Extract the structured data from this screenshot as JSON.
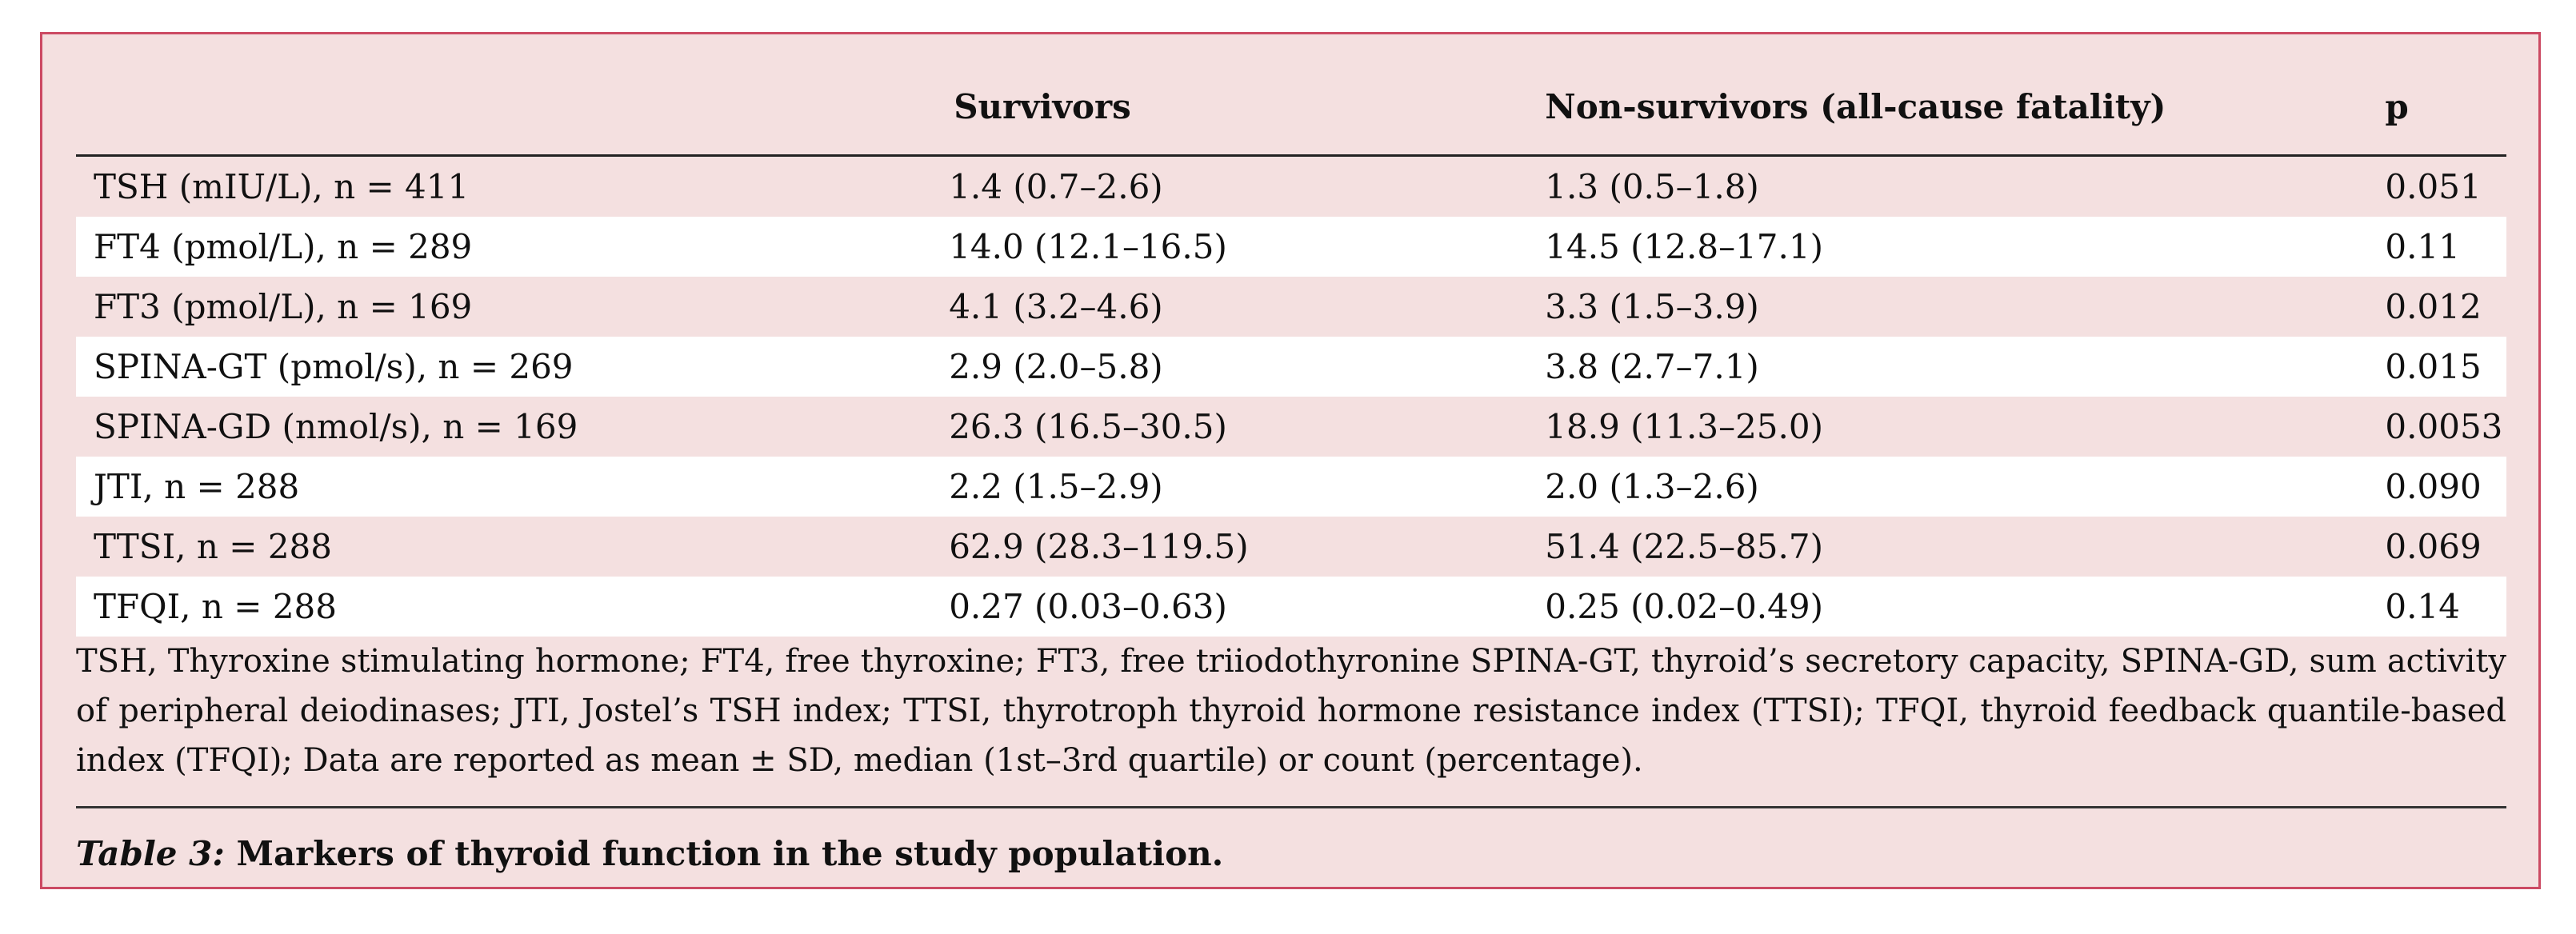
{
  "table": {
    "headers": {
      "label": "",
      "survivors": "Survivors",
      "non_survivors": "Non-survivors (all-cause fatality)",
      "p": "p"
    },
    "rows": [
      {
        "label": "TSH (mIU/L), n = 411",
        "survivors": "1.4 (0.7–2.6)",
        "non_survivors": "1.3 (0.5–1.8)",
        "p": "0.051"
      },
      {
        "label": "FT4 (pmol/L), n = 289",
        "survivors": "14.0 (12.1–16.5)",
        "non_survivors": "14.5 (12.8–17.1)",
        "p": "0.11"
      },
      {
        "label": "FT3 (pmol/L), n = 169",
        "survivors": "4.1 (3.2–4.6)",
        "non_survivors": "3.3 (1.5–3.9)",
        "p": "0.012"
      },
      {
        "label": "SPINA-GT (pmol/s), n = 269",
        "survivors": "2.9 (2.0–5.8)",
        "non_survivors": "3.8 (2.7–7.1)",
        "p": "0.015"
      },
      {
        "label": "SPINA-GD (nmol/s), n = 169",
        "survivors": "26.3 (16.5–30.5)",
        "non_survivors": "18.9 (11.3–25.0)",
        "p": "0.0053"
      },
      {
        "label": "JTI, n = 288",
        "survivors": "2.2 (1.5–2.9)",
        "non_survivors": "2.0 (1.3–2.6)",
        "p": "0.090"
      },
      {
        "label": "TTSI, n = 288",
        "survivors": "62.9 (28.3–119.5)",
        "non_survivors": "51.4 (22.5–85.7)",
        "p": "0.069"
      },
      {
        "label": "TFQI, n = 288",
        "survivors": "0.27 (0.03–0.63)",
        "non_survivors": "0.25 (0.02–0.49)",
        "p": "0.14"
      }
    ]
  },
  "notes": "TSH, Thyroxine stimulating hormone; FT4, free thyroxine; FT3, free triiodothyronine SPINA-GT, thyroid’s secretory capacity, SPINA-GD, sum activity of peripheral deiodinases; JTI, Jostel’s TSH index; TTSI, thyrotroph thyroid hormone resistance index (TTSI); TFQI, thyroid feedback quantile-based index (TFQI); Data are reported as mean ± SD, median (1st–3rd quartile) or count (percentage).",
  "caption": {
    "label": "Table 3:",
    "text": " Markers of thyroid function in the study population."
  }
}
